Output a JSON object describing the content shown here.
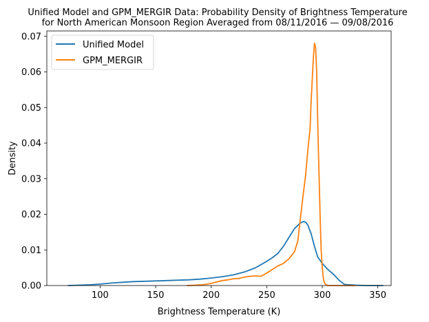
{
  "chart_data": {
    "type": "line",
    "title": "Unified Model and GPM_MERGIR Data: Probability Density of Brightness Temperature",
    "subtitle": "for North American Monsoon Region Averaged from 08/11/2016 — 09/08/2016",
    "xlabel": "Brightness Temperature (K)",
    "ylabel": "Density",
    "xlim": [
      52,
      362
    ],
    "ylim": [
      0,
      0.0715
    ],
    "x_ticks": [
      100,
      150,
      200,
      250,
      300,
      350
    ],
    "x_tick_labels": [
      "100",
      "150",
      "200",
      "250",
      "300",
      "350"
    ],
    "y_ticks": [
      0.0,
      0.01,
      0.02,
      0.03,
      0.04,
      0.05,
      0.06,
      0.07
    ],
    "y_tick_labels": [
      "0.00",
      "0.01",
      "0.02",
      "0.03",
      "0.04",
      "0.05",
      "0.06",
      "0.07"
    ],
    "grid": false,
    "legend_position": "upper-left",
    "series": [
      {
        "name": "Unified Model",
        "color": "#1f77b4",
        "x": [
          71,
          80,
          90,
          100,
          110,
          120,
          130,
          140,
          150,
          160,
          170,
          180,
          190,
          200,
          210,
          220,
          230,
          240,
          250,
          255,
          260,
          265,
          270,
          275,
          280,
          283,
          285,
          287,
          290,
          293,
          296,
          300,
          305,
          310,
          315,
          320,
          330,
          340,
          355
        ],
        "y": [
          0.0,
          0.0001,
          0.0002,
          0.0004,
          0.0007,
          0.0009,
          0.0011,
          0.0012,
          0.0013,
          0.0014,
          0.0015,
          0.0016,
          0.0018,
          0.0021,
          0.0025,
          0.003,
          0.0038,
          0.005,
          0.0068,
          0.0078,
          0.009,
          0.011,
          0.0135,
          0.016,
          0.0175,
          0.018,
          0.0178,
          0.017,
          0.0145,
          0.011,
          0.008,
          0.0062,
          0.0045,
          0.0032,
          0.0015,
          0.0003,
          0.0001,
          0.0,
          0.0
        ]
      },
      {
        "name": "GPM_MERGIR",
        "color": "#ff7f0e",
        "x": [
          178,
          185,
          190,
          195,
          200,
          205,
          210,
          215,
          220,
          225,
          230,
          235,
          240,
          245,
          250,
          255,
          260,
          265,
          270,
          275,
          278,
          280,
          283,
          285,
          287,
          289,
          290,
          291,
          292,
          293,
          294,
          295,
          296,
          297,
          298,
          299,
          300,
          301,
          302,
          303,
          305,
          310,
          320,
          330
        ],
        "y": [
          0.0,
          0.0001,
          0.0002,
          0.0003,
          0.0006,
          0.001,
          0.0014,
          0.0016,
          0.0019,
          0.002,
          0.0024,
          0.0026,
          0.0027,
          0.0026,
          0.0035,
          0.0045,
          0.0055,
          0.0062,
          0.0075,
          0.0095,
          0.0125,
          0.018,
          0.026,
          0.031,
          0.038,
          0.044,
          0.052,
          0.058,
          0.064,
          0.068,
          0.067,
          0.06,
          0.045,
          0.032,
          0.02,
          0.01,
          0.005,
          0.002,
          0.0008,
          0.0003,
          0.0,
          0.0,
          0.0,
          0.0
        ]
      }
    ]
  }
}
